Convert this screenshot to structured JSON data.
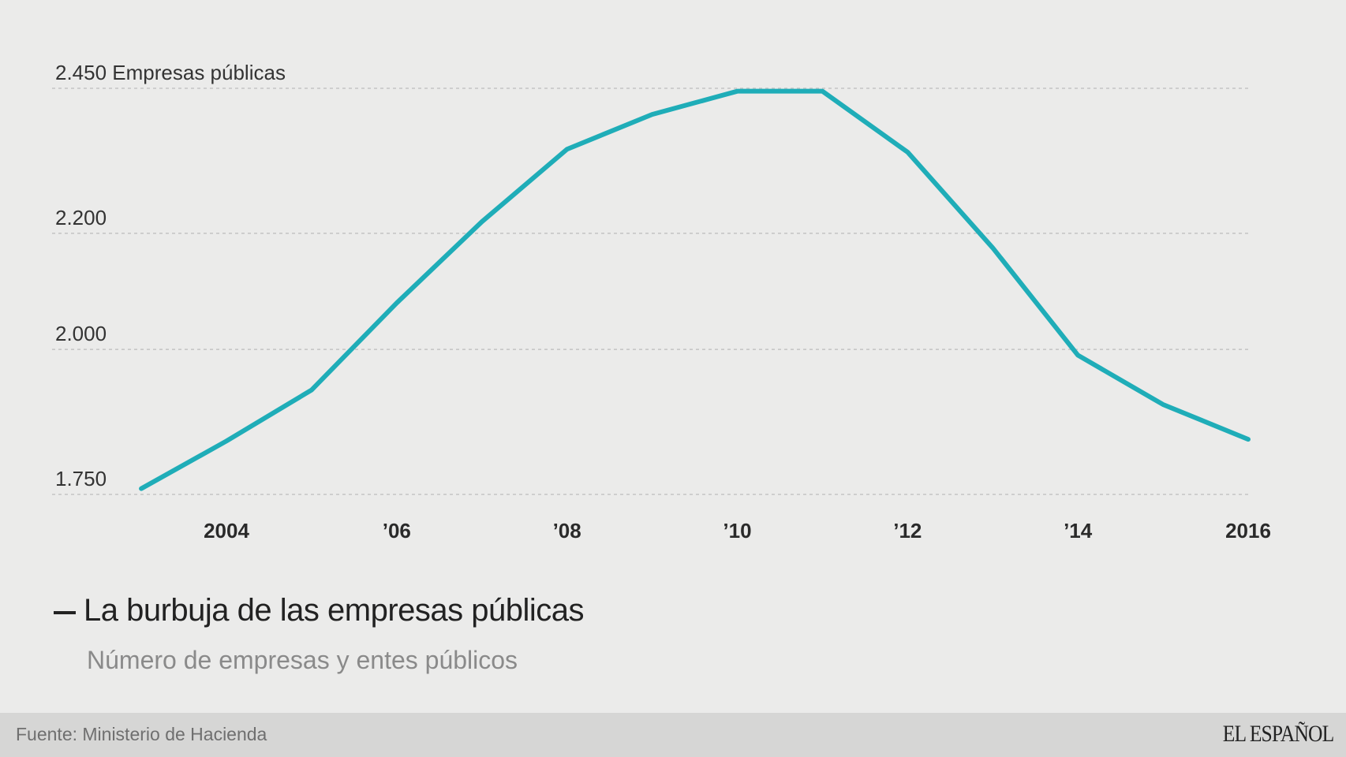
{
  "chart_data": {
    "type": "line",
    "title": "La burbuja de las empresas públicas",
    "subtitle": "Número de empresas y entes públicos",
    "y_unit_label": "Empresas públicas",
    "x": [
      2003,
      2004,
      2005,
      2006,
      2007,
      2008,
      2009,
      2010,
      2011,
      2012,
      2013,
      2014,
      2015,
      2016
    ],
    "series": [
      {
        "values": [
          1760,
          1842,
          1930,
          2080,
          2220,
          2345,
          2405,
          2445,
          2445,
          2340,
          2175,
          1990,
          1905,
          1845
        ]
      }
    ],
    "y_ticks": [
      {
        "value": 1750,
        "label": "1.750"
      },
      {
        "value": 2000,
        "label": "2.000"
      },
      {
        "value": 2200,
        "label": "2.200"
      },
      {
        "value": 2450,
        "label": "2.450 Empresas públicas"
      }
    ],
    "x_ticks": [
      {
        "value": 2004,
        "label": "2004"
      },
      {
        "value": 2006,
        "label": "’06"
      },
      {
        "value": 2008,
        "label": "’08"
      },
      {
        "value": 2010,
        "label": "’10"
      },
      {
        "value": 2012,
        "label": "’12"
      },
      {
        "value": 2014,
        "label": "’14"
      },
      {
        "value": 2016,
        "label": "2016"
      }
    ],
    "ylim": [
      1750,
      2450
    ],
    "xlim": [
      2002,
      2016
    ],
    "grid": true,
    "line_color": "#1fadb8"
  },
  "footer": {
    "source": "Fuente: Ministerio de Hacienda",
    "logo": "EL ESPAÑOL"
  }
}
